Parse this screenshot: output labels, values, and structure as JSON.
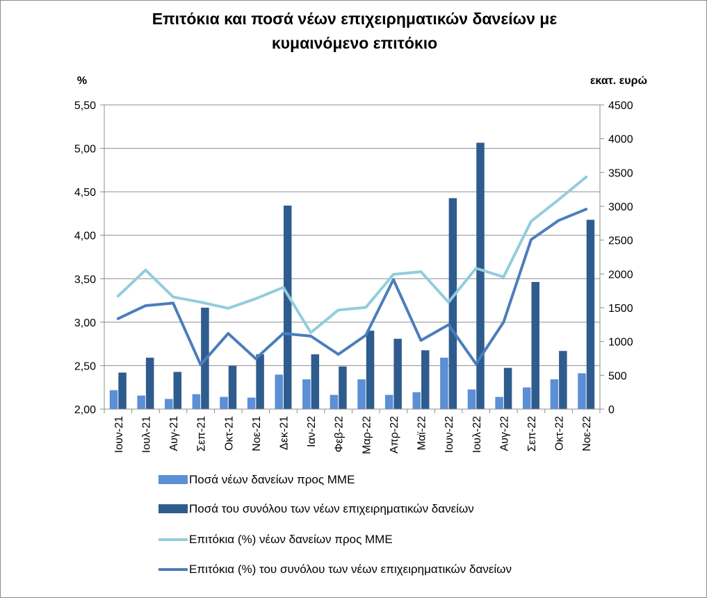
{
  "chart_data": {
    "type": "bar",
    "title_line1": "Επιτόκια και ποσά νέων επιχειρηματικών δανείων με",
    "title_line2": "κυμαινόμενο επιτόκιο",
    "ylabel_left": "%",
    "ylabel_right": "εκατ. ευρώ",
    "categories": [
      "Ιουν-21",
      "Ιουλ-21",
      "Αυγ-21",
      "Σεπ-21",
      "Οκτ-21",
      "Νοε-21",
      "Δεκ-21",
      "Ιαν-22",
      "Φεβ-22",
      "Μαρ-22",
      "Απρ-22",
      "Μαϊ-22",
      "Ιουν-22",
      "Ιουλ-22",
      "Αυγ-22",
      "Σεπ-22",
      "Οκτ-22",
      "Νοε-22"
    ],
    "left_axis": {
      "min": 2.0,
      "max": 5.5,
      "ticks": [
        "2,00",
        "2,50",
        "3,00",
        "3,50",
        "4,00",
        "4,50",
        "5,00",
        "5,50"
      ]
    },
    "right_axis": {
      "min": 0,
      "max": 4500,
      "ticks": [
        "0",
        "500",
        "1000",
        "1500",
        "2000",
        "2500",
        "3000",
        "3500",
        "4000",
        "4500"
      ]
    },
    "grid": true,
    "legend_position": "bottom",
    "series": [
      {
        "name": "Ποσά νέων δανείων προς ΜΜΕ",
        "kind": "bar",
        "axis": "right",
        "color": "#5b8fd6",
        "values": [
          280,
          200,
          150,
          220,
          180,
          170,
          510,
          440,
          210,
          440,
          210,
          250,
          760,
          290,
          180,
          320,
          440,
          530
        ]
      },
      {
        "name": "Ποσά του συνόλου των νέων επιχειρηματικών δανείων",
        "kind": "bar",
        "axis": "right",
        "color": "#2f5c8e",
        "values": [
          540,
          760,
          550,
          1500,
          640,
          810,
          3010,
          810,
          630,
          1160,
          1040,
          870,
          3120,
          3940,
          610,
          1880,
          860,
          2800
        ]
      },
      {
        "name": "Επιτόκια (%) νέων δανείων προς ΜΜΕ",
        "kind": "line",
        "axis": "left",
        "color": "#92cddc",
        "values": [
          3.3,
          3.6,
          3.29,
          3.23,
          3.16,
          3.27,
          3.4,
          2.88,
          3.14,
          3.17,
          3.55,
          3.58,
          3.23,
          3.62,
          3.52,
          4.16,
          4.41,
          4.67
        ]
      },
      {
        "name": "Επιτόκια (%) του συνόλου των νέων επιχειρηματικών δανείων",
        "kind": "line",
        "axis": "left",
        "color": "#4a7ebb",
        "values": [
          3.04,
          3.19,
          3.22,
          2.51,
          2.87,
          2.58,
          2.87,
          2.84,
          2.63,
          2.85,
          3.49,
          2.79,
          2.97,
          2.52,
          3.0,
          3.95,
          4.17,
          4.3
        ]
      }
    ]
  }
}
